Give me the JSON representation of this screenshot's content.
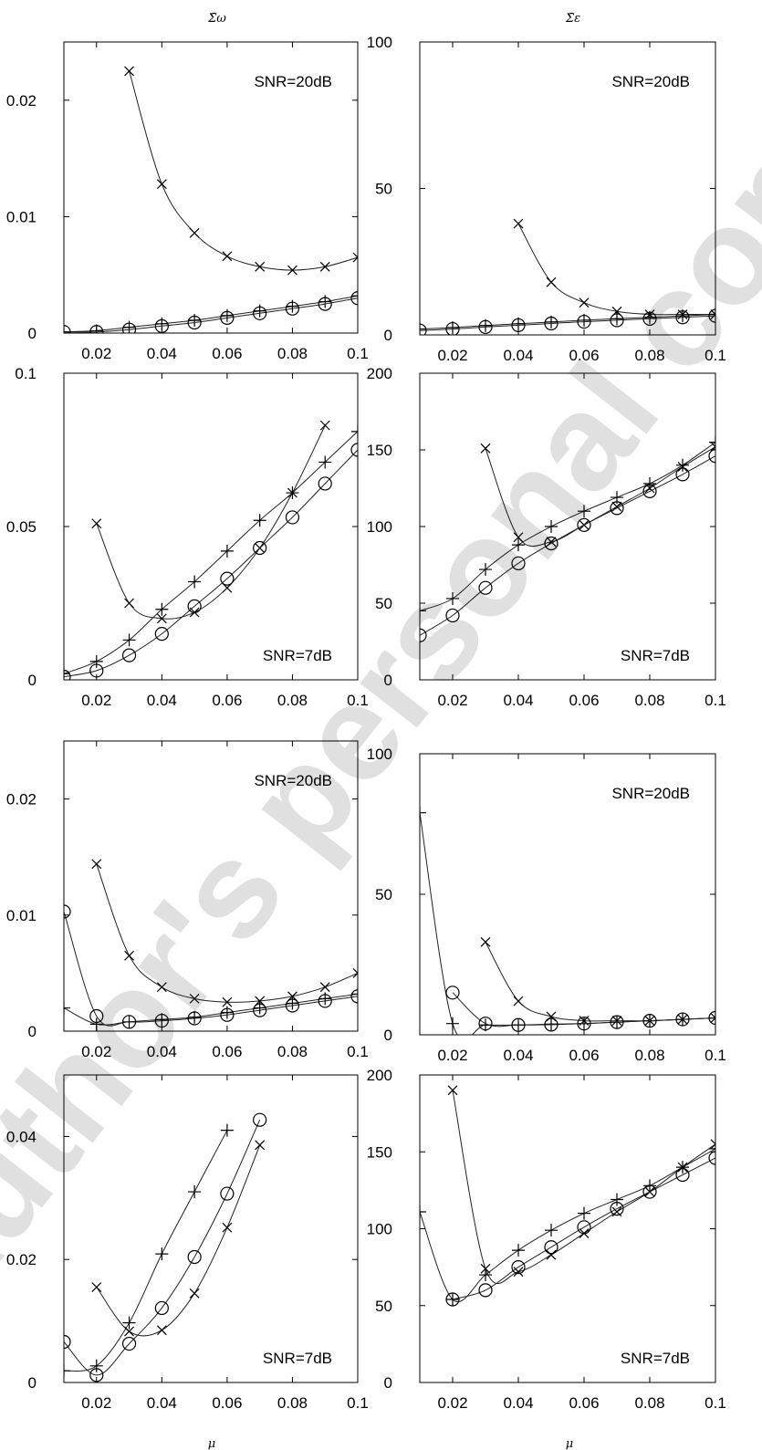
{
  "column_titles": [
    "Σ̄ω",
    "Σ̄ε"
  ],
  "xlabel": "μ",
  "watermark": "Author's personal copy",
  "chart_data": [
    {
      "type": "line",
      "title": "Σ̄ω",
      "annotation": "SNR=20dB",
      "xlim": [
        0.01,
        0.1
      ],
      "ylim": [
        0,
        0.025
      ],
      "xticks": [
        0.02,
        0.04,
        0.06,
        0.08,
        0.1
      ],
      "xtick_labels": [
        "0.02",
        "0.04",
        "0.06",
        "0.08",
        "0.1"
      ],
      "yticks": [
        0,
        0.01,
        0.02
      ],
      "ytick_labels": [
        "0",
        "0.01",
        "0.02"
      ],
      "series": [
        {
          "marker": "x",
          "x": [
            0.01,
            0.02,
            0.03,
            0.04,
            0.05,
            0.06,
            0.07,
            0.08,
            0.09,
            0.1
          ],
          "y": [
            null,
            null,
            0.0225,
            0.0128,
            0.0086,
            0.0066,
            0.0057,
            0.0054,
            0.0057,
            0.0065
          ]
        },
        {
          "marker": "+",
          "x": [
            0.01,
            0.02,
            0.03,
            0.04,
            0.05,
            0.06,
            0.07,
            0.08,
            0.09,
            0.1
          ],
          "y": [
            0.0001,
            0.0002,
            0.0005,
            0.0008,
            0.0011,
            0.0015,
            0.0019,
            0.0023,
            0.0027,
            0.0032
          ]
        },
        {
          "marker": "o",
          "x": [
            0.01,
            0.02,
            0.03,
            0.04,
            0.05,
            0.06,
            0.07,
            0.08,
            0.09,
            0.1
          ],
          "y": [
            0.0001,
            0.0001,
            0.0003,
            0.0006,
            0.0009,
            0.0013,
            0.0017,
            0.0021,
            0.0025,
            0.003
          ]
        }
      ]
    },
    {
      "type": "line",
      "title": "Σ̄ε",
      "annotation": "SNR=20dB",
      "xlim": [
        0.01,
        0.1
      ],
      "ylim": [
        0,
        100
      ],
      "xticks": [
        0.02,
        0.04,
        0.06,
        0.08,
        0.1
      ],
      "xtick_labels": [
        "0.02",
        "0.04",
        "0.06",
        "0.08",
        "0.1"
      ],
      "yticks": [
        0,
        50,
        100
      ],
      "ytick_labels": [
        "0",
        "50",
        "100"
      ],
      "series": [
        {
          "marker": "x",
          "x": [
            0.01,
            0.02,
            0.03,
            0.04,
            0.05,
            0.06,
            0.07,
            0.08,
            0.09,
            0.1
          ],
          "y": [
            null,
            null,
            null,
            38,
            18,
            11,
            8,
            7,
            7,
            7
          ]
        },
        {
          "marker": "+",
          "x": [
            0.01,
            0.02,
            0.03,
            0.04,
            0.05,
            0.06,
            0.07,
            0.08,
            0.09,
            0.1
          ],
          "y": [
            2,
            2.5,
            3.2,
            3.8,
            4.4,
            5,
            5.5,
            6,
            6.5,
            7
          ]
        },
        {
          "marker": "o",
          "x": [
            0.01,
            0.02,
            0.03,
            0.04,
            0.05,
            0.06,
            0.07,
            0.08,
            0.09,
            0.1
          ],
          "y": [
            1.5,
            2,
            2.7,
            3.3,
            3.9,
            4.5,
            5,
            5.5,
            6,
            6.5
          ]
        }
      ]
    },
    {
      "type": "line",
      "annotation": "SNR=7dB",
      "xlim": [
        0.01,
        0.1
      ],
      "ylim": [
        0,
        0.1
      ],
      "xticks": [
        0.02,
        0.04,
        0.06,
        0.08,
        0.1
      ],
      "xtick_labels": [
        "0.02",
        "0.04",
        "0.06",
        "0.08",
        "0.1"
      ],
      "yticks": [
        0,
        0.05,
        0.1
      ],
      "ytick_labels": [
        "0",
        "0.05",
        "0.1"
      ],
      "series": [
        {
          "marker": "x",
          "x": [
            0.01,
            0.02,
            0.03,
            0.04,
            0.05,
            0.06,
            0.07,
            0.08,
            0.09,
            0.1
          ],
          "y": [
            null,
            0.051,
            0.025,
            0.02,
            0.022,
            0.03,
            0.043,
            0.061,
            0.083,
            null
          ]
        },
        {
          "marker": "+",
          "x": [
            0.01,
            0.02,
            0.03,
            0.04,
            0.05,
            0.06,
            0.07,
            0.08,
            0.09,
            0.1
          ],
          "y": [
            0.002,
            0.006,
            0.013,
            0.023,
            0.032,
            0.042,
            0.052,
            0.061,
            0.071,
            0.081
          ]
        },
        {
          "marker": "o",
          "x": [
            0.01,
            0.02,
            0.03,
            0.04,
            0.05,
            0.06,
            0.07,
            0.08,
            0.09,
            0.1
          ],
          "y": [
            0.001,
            0.003,
            0.008,
            0.015,
            0.024,
            0.033,
            0.043,
            0.053,
            0.064,
            0.075
          ]
        }
      ]
    },
    {
      "type": "line",
      "annotation": "SNR=7dB",
      "xlim": [
        0.01,
        0.1
      ],
      "ylim": [
        0,
        200
      ],
      "xticks": [
        0.02,
        0.04,
        0.06,
        0.08,
        0.1
      ],
      "xtick_labels": [
        "0.02",
        "0.04",
        "0.06",
        "0.08",
        "0.1"
      ],
      "yticks": [
        0,
        50,
        100,
        150,
        200
      ],
      "ytick_labels": [
        "0",
        "50",
        "100",
        "150",
        "200"
      ],
      "series": [
        {
          "marker": "x",
          "x": [
            0.01,
            0.02,
            0.03,
            0.04,
            0.05,
            0.06,
            0.07,
            0.08,
            0.09,
            0.1
          ],
          "y": [
            null,
            null,
            151,
            93,
            90,
            101,
            113,
            125,
            139,
            152
          ]
        },
        {
          "marker": "+",
          "x": [
            0.01,
            0.02,
            0.03,
            0.04,
            0.05,
            0.06,
            0.07,
            0.08,
            0.09,
            0.1
          ],
          "y": [
            45,
            53,
            72,
            88,
            100,
            110,
            119,
            128,
            140,
            155
          ]
        },
        {
          "marker": "o",
          "x": [
            0.01,
            0.02,
            0.03,
            0.04,
            0.05,
            0.06,
            0.07,
            0.08,
            0.09,
            0.1
          ],
          "y": [
            29,
            42,
            60,
            76,
            89,
            101,
            112,
            123,
            134,
            146
          ]
        }
      ]
    },
    {
      "type": "line",
      "annotation": "SNR=20dB",
      "xlim": [
        0.01,
        0.1
      ],
      "ylim": [
        0,
        0.025
      ],
      "xticks": [
        0.02,
        0.04,
        0.06,
        0.08,
        0.1
      ],
      "xtick_labels": [
        "0.02",
        "0.04",
        "0.06",
        "0.08",
        "0.1"
      ],
      "yticks": [
        0,
        0.01,
        0.02
      ],
      "ytick_labels": [
        "0",
        "0.01",
        "0.02"
      ],
      "series": [
        {
          "marker": "x",
          "x": [
            0.01,
            0.02,
            0.03,
            0.04,
            0.05,
            0.06,
            0.07,
            0.08,
            0.09,
            0.1
          ],
          "y": [
            null,
            0.0144,
            0.0065,
            0.0038,
            0.0028,
            0.0025,
            0.0026,
            0.003,
            0.0038,
            0.005
          ]
        },
        {
          "marker": "+",
          "x": [
            0.01,
            0.02,
            0.03,
            0.04,
            0.05,
            0.06,
            0.07,
            0.08,
            0.09,
            0.1
          ],
          "y": [
            0.002,
            0.0006,
            0.0008,
            0.001,
            0.0012,
            0.0016,
            0.002,
            0.0024,
            0.0028,
            0.0032
          ]
        },
        {
          "marker": "o",
          "x": [
            0.01,
            0.02,
            0.03,
            0.04,
            0.05,
            0.06,
            0.07,
            0.08,
            0.09,
            0.1
          ],
          "y": [
            0.0103,
            0.0013,
            0.0008,
            0.0009,
            0.0011,
            0.0014,
            0.0018,
            0.0022,
            0.0026,
            0.003
          ]
        }
      ]
    },
    {
      "type": "line",
      "annotation": "SNR=20dB",
      "xlim": [
        0.01,
        0.1
      ],
      "ylim": [
        0,
        100
      ],
      "xticks": [
        0.02,
        0.04,
        0.06,
        0.08,
        0.1
      ],
      "xtick_labels": [
        "0.02",
        "0.04",
        "0.06",
        "0.08",
        "0.1"
      ],
      "yticks": [
        0,
        50,
        100
      ],
      "ytick_labels": [
        "0",
        "50",
        "100"
      ],
      "series": [
        {
          "marker": "x",
          "x": [
            0.01,
            0.02,
            0.03,
            0.04,
            0.05,
            0.06,
            0.07,
            0.08,
            0.09,
            0.1
          ],
          "y": [
            null,
            null,
            33,
            12,
            6.5,
            5,
            5,
            5,
            5.5,
            6
          ]
        },
        {
          "marker": "+",
          "x": [
            0.01,
            0.02,
            0.03,
            0.04,
            0.05,
            0.06,
            0.07,
            0.08,
            0.09,
            0.1
          ],
          "y": [
            79,
            4,
            3.5,
            3.5,
            3.8,
            4,
            4.5,
            5,
            5.5,
            6
          ]
        },
        {
          "marker": "o",
          "x": [
            0.01,
            0.02,
            0.03,
            0.04,
            0.05,
            0.06,
            0.07,
            0.08,
            0.09,
            0.1
          ],
          "y": [
            null,
            15,
            4,
            3.5,
            3.6,
            4,
            4.5,
            5,
            5.5,
            6
          ]
        }
      ]
    },
    {
      "type": "line",
      "annotation": "SNR=7dB",
      "xlim": [
        0.01,
        0.1
      ],
      "ylim": [
        0,
        0.05
      ],
      "xticks": [
        0.02,
        0.04,
        0.06,
        0.08,
        0.1
      ],
      "xtick_labels": [
        "0.02",
        "0.04",
        "0.06",
        "0.08",
        "0.1"
      ],
      "yticks": [
        0,
        0.02,
        0.04
      ],
      "ytick_labels": [
        "0",
        "0.02",
        "0.04"
      ],
      "series": [
        {
          "marker": "x",
          "x": [
            0.01,
            0.02,
            0.03,
            0.04,
            0.05,
            0.06,
            0.07,
            0.08,
            0.09,
            0.1
          ],
          "y": [
            null,
            0.0155,
            0.0083,
            0.0085,
            0.0145,
            0.0252,
            0.0386,
            null,
            null,
            null
          ]
        },
        {
          "marker": "+",
          "x": [
            0.01,
            0.02,
            0.03,
            0.04,
            0.05,
            0.06,
            0.07,
            0.08,
            0.09,
            0.1
          ],
          "y": [
            0.0019,
            0.0027,
            0.0097,
            0.0209,
            0.031,
            0.041,
            null,
            null,
            null,
            null
          ]
        },
        {
          "marker": "o",
          "x": [
            0.01,
            0.02,
            0.03,
            0.04,
            0.05,
            0.06,
            0.07,
            0.08,
            0.09,
            0.1
          ],
          "y": [
            0.0066,
            0.0012,
            0.0063,
            0.0121,
            0.0204,
            0.0307,
            0.0427,
            null,
            null,
            null
          ]
        }
      ]
    },
    {
      "type": "line",
      "annotation": "SNR=7dB",
      "xlabel": "μ",
      "xlim": [
        0.01,
        0.1
      ],
      "ylim": [
        0,
        200
      ],
      "xticks": [
        0.02,
        0.04,
        0.06,
        0.08,
        0.1
      ],
      "xtick_labels": [
        "0.02",
        "0.04",
        "0.06",
        "0.08",
        "0.1"
      ],
      "yticks": [
        0,
        50,
        100,
        150,
        200
      ],
      "ytick_labels": [
        "0",
        "50",
        "100",
        "150",
        "200"
      ],
      "series": [
        {
          "marker": "x",
          "x": [
            0.01,
            0.02,
            0.03,
            0.04,
            0.05,
            0.06,
            0.07,
            0.08,
            0.09,
            0.1
          ],
          "y": [
            null,
            190,
            74,
            72,
            83,
            97,
            111,
            124,
            140,
            155
          ]
        },
        {
          "marker": "+",
          "x": [
            0.01,
            0.02,
            0.03,
            0.04,
            0.05,
            0.06,
            0.07,
            0.08,
            0.09,
            0.1
          ],
          "y": [
            111,
            54,
            70,
            86,
            99,
            110,
            119,
            128,
            140,
            152
          ]
        },
        {
          "marker": "o",
          "x": [
            0.01,
            0.02,
            0.03,
            0.04,
            0.05,
            0.06,
            0.07,
            0.08,
            0.09,
            0.1
          ],
          "y": [
            null,
            54,
            60,
            75,
            88,
            101,
            113,
            124,
            135,
            146
          ]
        }
      ]
    }
  ]
}
